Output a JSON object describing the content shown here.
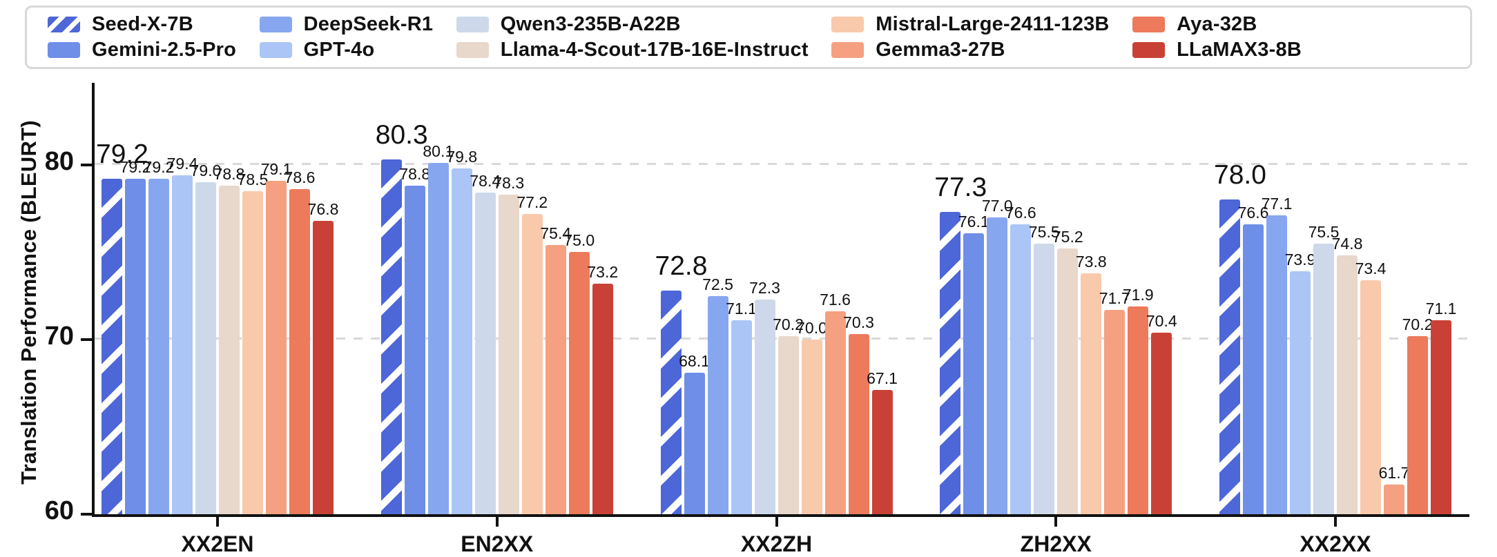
{
  "chart_data": {
    "type": "bar",
    "title": "",
    "xlabel": "",
    "ylabel": "Translation Performance (BLEURT)",
    "categories": [
      "XX2EN",
      "EN2XX",
      "XX2ZH",
      "ZH2XX",
      "XX2XX"
    ],
    "ylim": [
      60,
      84.3
    ],
    "yticks": [
      60,
      70,
      80
    ],
    "gridlines_y": [
      70,
      80
    ],
    "grid_style": "dashed",
    "legend_position": "top",
    "legend_rows": 2,
    "value_label_format": "one_decimal",
    "emphasized_series": "Seed-X-7B",
    "series": [
      {
        "name": "Seed-X-7B",
        "color": "#4D66D8",
        "hatched": true,
        "values": [
          79.2,
          80.3,
          72.8,
          77.3,
          78.0
        ]
      },
      {
        "name": "Gemini-2.5-Pro",
        "color": "#6E8EE8",
        "hatched": false,
        "values": [
          79.2,
          78.8,
          68.1,
          76.1,
          76.6
        ]
      },
      {
        "name": "DeepSeek-R1",
        "color": "#87A6F0",
        "hatched": false,
        "values": [
          79.2,
          80.1,
          72.5,
          77.0,
          77.1
        ]
      },
      {
        "name": "GPT-4o",
        "color": "#ABC5F6",
        "hatched": false,
        "values": [
          79.4,
          79.8,
          71.1,
          76.6,
          73.9
        ]
      },
      {
        "name": "Qwen3-235B-A22B",
        "color": "#CDD9EA",
        "hatched": false,
        "values": [
          79.0,
          78.4,
          72.3,
          75.5,
          75.5
        ]
      },
      {
        "name": "Llama-4-Scout-17B-16E-Instruct",
        "color": "#E8D7CB",
        "hatched": false,
        "values": [
          78.8,
          78.3,
          70.2,
          75.2,
          74.8
        ]
      },
      {
        "name": "Mistral-Large-2411-123B",
        "color": "#F9C9AB",
        "hatched": false,
        "values": [
          78.5,
          77.2,
          70.0,
          73.8,
          73.4
        ]
      },
      {
        "name": "Gemma3-27B",
        "color": "#F4A081",
        "hatched": false,
        "values": [
          79.1,
          75.4,
          71.6,
          71.7,
          61.7
        ]
      },
      {
        "name": "Aya-32B",
        "color": "#EC7A5B",
        "hatched": false,
        "values": [
          78.6,
          75.0,
          70.3,
          71.9,
          70.2
        ]
      },
      {
        "name": "LLaMAX3-8B",
        "color": "#C94136",
        "hatched": false,
        "values": [
          76.8,
          73.2,
          67.1,
          70.4,
          71.1
        ]
      }
    ]
  },
  "colors": {
    "background": "#ffffff",
    "axis": "#111111",
    "grid": "#d9d9d9",
    "legend_border": "#d8d8d8",
    "hatch": "#ffffff",
    "text": "#111111"
  }
}
